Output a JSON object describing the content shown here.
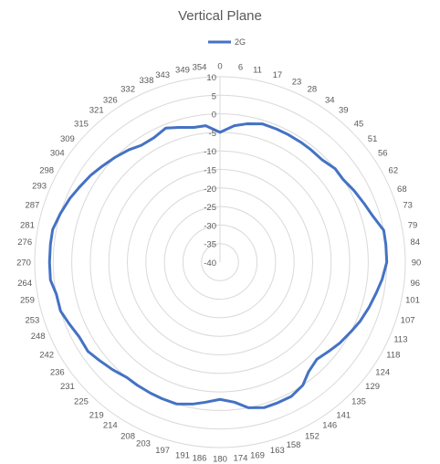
{
  "chart_data": {
    "type": "radar",
    "title": "Vertical Plane",
    "legend": {
      "position": "top",
      "entries": [
        "2G"
      ]
    },
    "series": [
      {
        "name": "2G",
        "color": "#4472C4",
        "angle_deg": [
          0,
          6,
          11,
          17,
          23,
          28,
          34,
          39,
          45,
          51,
          56,
          62,
          68,
          73,
          79,
          84,
          90,
          96,
          101,
          107,
          113,
          118,
          124,
          129,
          135,
          141,
          146,
          152,
          158,
          163,
          169,
          174,
          180,
          186,
          191,
          197,
          203,
          208,
          214,
          219,
          225,
          231,
          236,
          242,
          248,
          253,
          259,
          264,
          270,
          276,
          281,
          287,
          293,
          298,
          304,
          309,
          315,
          321,
          326,
          332,
          338,
          343,
          349,
          354
        ],
        "values": [
          -5,
          -3,
          -2,
          -1,
          -1,
          -1,
          -1,
          -1,
          -1,
          0,
          0,
          1,
          2,
          3,
          5,
          5,
          5,
          4,
          3,
          2,
          1,
          0,
          -1,
          -2,
          -3,
          -2,
          0,
          1,
          1,
          1,
          0,
          -2,
          -3,
          -2,
          -1,
          0,
          0,
          0,
          0,
          0,
          1,
          2,
          3,
          3,
          4,
          5,
          5,
          6,
          6,
          6,
          6,
          5,
          4,
          3,
          2,
          1,
          0,
          -1,
          -2,
          -2,
          -1,
          -2,
          -3,
          -3
        ]
      }
    ],
    "radial_axis": {
      "min": -40,
      "max": 10,
      "step": 5,
      "tick_labels": [
        "-40",
        "-35",
        "-30",
        "-25",
        "-20",
        "-15",
        "-10",
        "-5",
        "0",
        "5",
        "10"
      ]
    },
    "angular_axis": {
      "tick_labels": [
        "0",
        "6",
        "11",
        "17",
        "23",
        "28",
        "34",
        "39",
        "45",
        "51",
        "56",
        "62",
        "68",
        "73",
        "79",
        "84",
        "90",
        "96",
        "101",
        "107",
        "113",
        "118",
        "124",
        "129",
        "135",
        "141",
        "146",
        "152",
        "158",
        "163",
        "169",
        "174",
        "180",
        "186",
        "191",
        "197",
        "203",
        "208",
        "214",
        "219",
        "225",
        "231",
        "236",
        "242",
        "248",
        "253",
        "259",
        "264",
        "270",
        "276",
        "281",
        "287",
        "293",
        "298",
        "304",
        "309",
        "315",
        "321",
        "326",
        "332",
        "338",
        "343",
        "349",
        "354"
      ]
    },
    "grid": true
  }
}
